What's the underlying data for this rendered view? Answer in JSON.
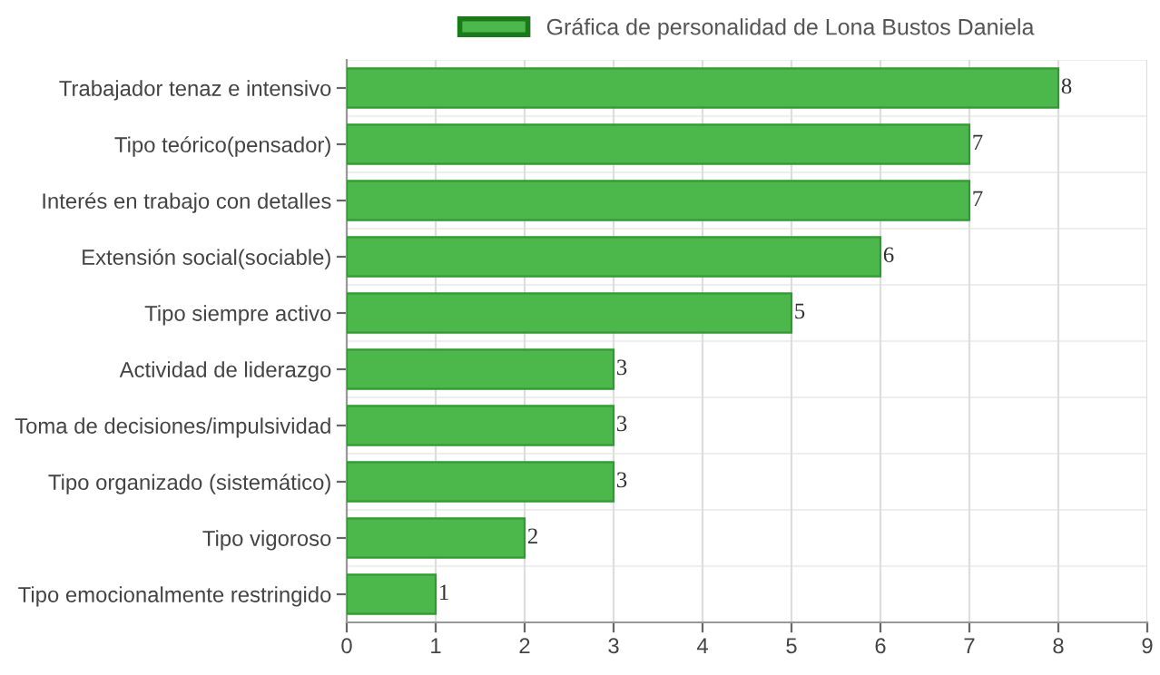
{
  "chart_data": {
    "type": "bar",
    "orientation": "horizontal",
    "categories": [
      "Trabajador tenaz e intensivo",
      "Tipo teórico(pensador)",
      "Interés en trabajo con detalles",
      "Extensión social(sociable)",
      "Tipo siempre activo",
      "Actividad de liderazgo",
      "Toma de decisiones/impulsividad",
      "Tipo organizado (sistemático)",
      "Tipo vigoroso",
      "Tipo emocionalmente restringido"
    ],
    "series": [
      {
        "name": "Gráfica de personalidad de Lona Bustos Daniela",
        "color": "#4cb84c",
        "values": [
          8,
          7,
          7,
          6,
          5,
          3,
          3,
          3,
          2,
          1
        ]
      }
    ],
    "xlim": [
      0,
      9
    ],
    "xticks": [
      0,
      1,
      2,
      3,
      4,
      5,
      6,
      7,
      8,
      9
    ],
    "grid": true,
    "legend": "top",
    "data_labels": true
  }
}
